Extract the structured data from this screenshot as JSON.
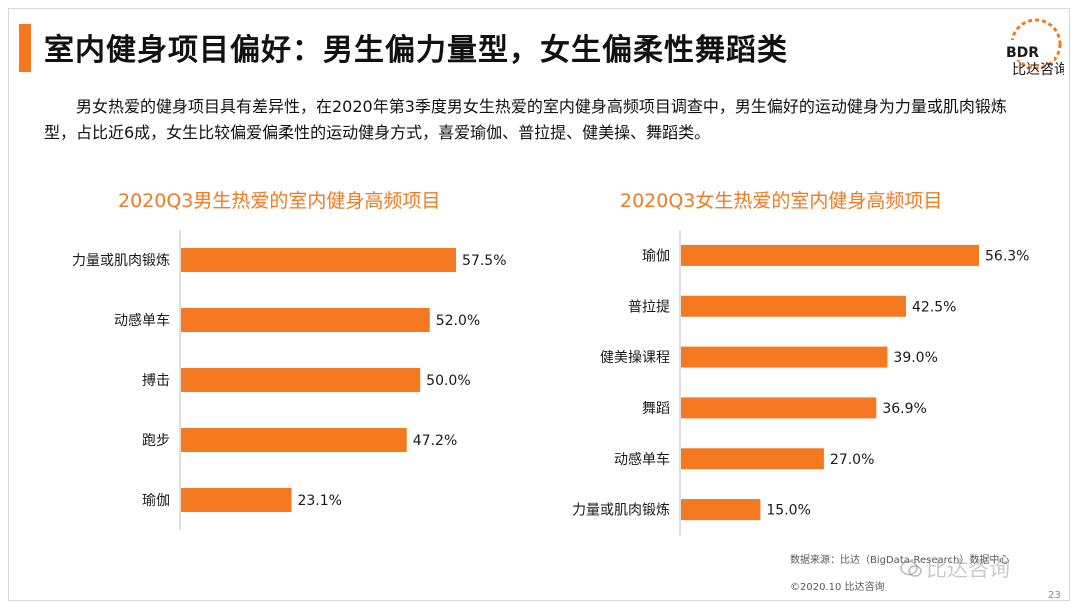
{
  "title": "室内健身项目偏好：男生偏力量型，女生偏柔性舞蹈类",
  "intro": "男女热爱的健身项目具有差异性，在2020年第3季度男女生热爱的室内健身高频项目调查中，男生偏好的运动健身为力量或肌肉锻炼型，占比近6成，女生比较偏爱偏柔性的运动健身方式，喜爱瑜伽、普拉提、健美操、舞蹈类。",
  "logo": {
    "text": "BDR",
    "subtitle": "比达咨询",
    "brand_color": "#f47920",
    "accent_blue": "#3a6fc4"
  },
  "colors": {
    "bar": "#f47920",
    "axis": "#bfbfbf",
    "accent": "#f47920"
  },
  "chart_data": [
    {
      "type": "bar",
      "orientation": "horizontal",
      "title": "2020Q3男生热爱的室内健身高频项目",
      "categories": [
        "力量或肌肉锻炼",
        "动感单车",
        "搏击",
        "跑步",
        "瑜伽"
      ],
      "values": [
        57.5,
        52.0,
        50.0,
        47.2,
        23.1
      ],
      "labels": [
        "57.5%",
        "52.0%",
        "50.0%",
        "47.2%",
        "23.1%"
      ],
      "unit": "%",
      "xlim": [
        0,
        60
      ]
    },
    {
      "type": "bar",
      "orientation": "horizontal",
      "title": "2020Q3女生热爱的室内健身高频项目",
      "categories": [
        "瑜伽",
        "普拉提",
        "健美操课程",
        "舞蹈",
        "动感单车",
        "力量或肌肉锻炼"
      ],
      "values": [
        56.3,
        42.5,
        39.0,
        36.9,
        27.0,
        15.0
      ],
      "labels": [
        "56.3%",
        "42.5%",
        "39.0%",
        "36.9%",
        "27.0%",
        "15.0%"
      ],
      "unit": "%",
      "xlim": [
        0,
        56.3
      ]
    }
  ],
  "footer": {
    "source": "数据来源：比达（BigData-Research）数据中心",
    "copyright": "©2020.10 比达咨询",
    "watermark": "比达咨询",
    "page_number": "23"
  }
}
